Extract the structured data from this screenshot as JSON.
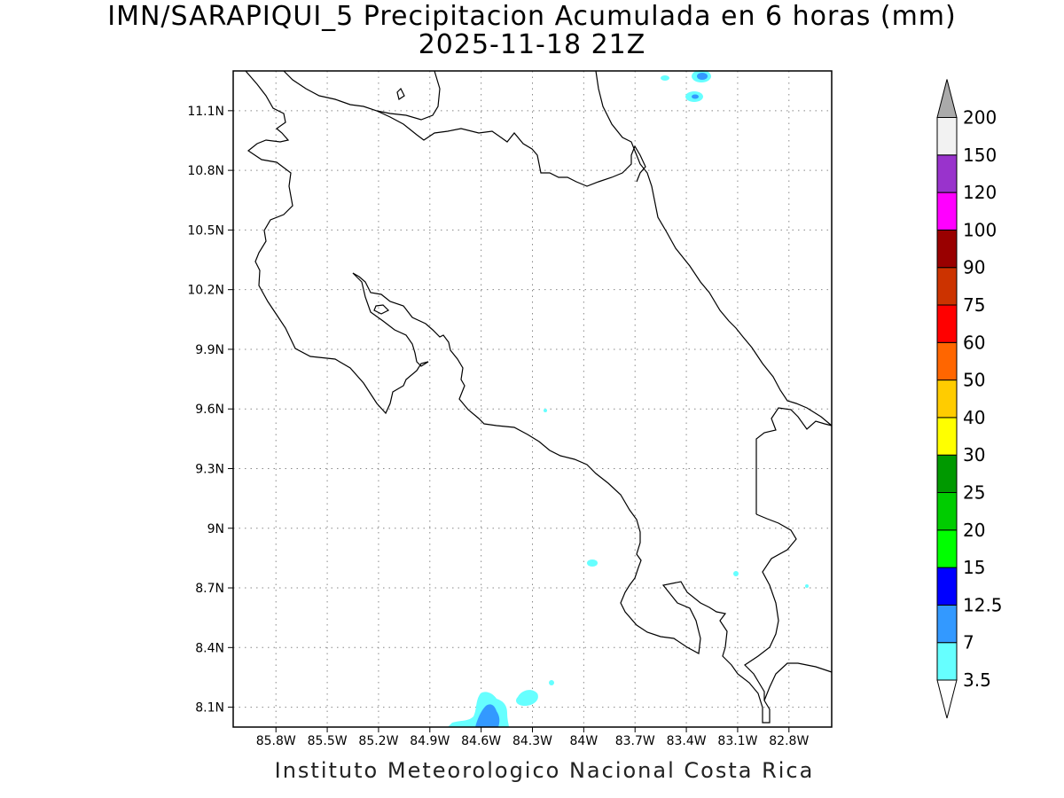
{
  "title_line1": "IMN/SARAPIQUI_5 Precipitacion Acumulada en 6 horas (mm)",
  "title_line2": "2025-11-18 21Z",
  "credit": "Instituto Meteorologico Nacional Costa Rica",
  "map": {
    "lon_range": [
      -86.05,
      -82.55
    ],
    "lat_range": [
      8.0,
      11.3
    ],
    "lon_ticks": [
      {
        "value": -85.8,
        "label": "85.8W"
      },
      {
        "value": -85.5,
        "label": "85.5W"
      },
      {
        "value": -85.2,
        "label": "85.2W"
      },
      {
        "value": -84.9,
        "label": "84.9W"
      },
      {
        "value": -84.6,
        "label": "84.6W"
      },
      {
        "value": -84.3,
        "label": "84.3W"
      },
      {
        "value": -84.0,
        "label": "84W"
      },
      {
        "value": -83.7,
        "label": "83.7W"
      },
      {
        "value": -83.4,
        "label": "83.4W"
      },
      {
        "value": -83.1,
        "label": "83.1W"
      },
      {
        "value": -82.8,
        "label": "82.8W"
      }
    ],
    "lat_ticks": [
      {
        "value": 11.1,
        "label": "11.1N"
      },
      {
        "value": 10.8,
        "label": "10.8N"
      },
      {
        "value": 10.5,
        "label": "10.5N"
      },
      {
        "value": 10.2,
        "label": "10.2N"
      },
      {
        "value": 9.9,
        "label": "9.9N"
      },
      {
        "value": 9.6,
        "label": "9.6N"
      },
      {
        "value": 9.3,
        "label": "9.3N"
      },
      {
        "value": 9.0,
        "label": "9N"
      },
      {
        "value": 8.7,
        "label": "8.7N"
      },
      {
        "value": 8.4,
        "label": "8.4N"
      },
      {
        "value": 8.1,
        "label": "8.1N"
      }
    ],
    "grid": "dotted"
  },
  "colorbar": {
    "levels": [
      {
        "label": "3.5",
        "color": "#66ffff"
      },
      {
        "label": "7",
        "color": "#3399ff"
      },
      {
        "label": "12.5",
        "color": "#0000ff"
      },
      {
        "label": "15",
        "color": "#00ff00"
      },
      {
        "label": "20",
        "color": "#00cc00"
      },
      {
        "label": "25",
        "color": "#009900"
      },
      {
        "label": "30",
        "color": "#ffff00"
      },
      {
        "label": "40",
        "color": "#ffcc00"
      },
      {
        "label": "50",
        "color": "#ff6600"
      },
      {
        "label": "60",
        "color": "#ff0000"
      },
      {
        "label": "75",
        "color": "#cc3300"
      },
      {
        "label": "90",
        "color": "#990000"
      },
      {
        "label": "100",
        "color": "#ff00ff"
      },
      {
        "label": "120",
        "color": "#9933cc"
      },
      {
        "label": "150",
        "color": "#f2f2f2"
      },
      {
        "label": "200",
        "color": "#aaaaaa"
      }
    ]
  }
}
